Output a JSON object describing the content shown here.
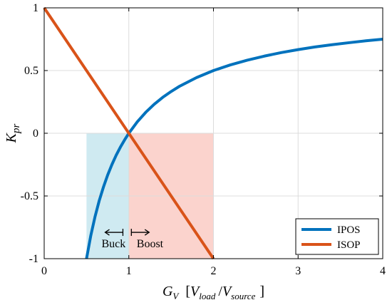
{
  "chart_data": {
    "type": "line",
    "xlim": [
      0,
      4
    ],
    "ylim": [
      -1,
      1
    ],
    "xticks": [
      0,
      1,
      2,
      3,
      4
    ],
    "xtick_labels": [
      "0",
      "1",
      "2",
      "3",
      "4"
    ],
    "yticks": [
      -1,
      -0.5,
      0,
      0.5,
      1
    ],
    "ytick_labels": [
      "-1",
      "-0.5",
      "0",
      "0.5",
      "1"
    ],
    "xlabel": {
      "var": "G",
      "var_sub": "V",
      "open_bracket": "[",
      "num": "V",
      "num_sub": "load",
      "slash": "/",
      "den": "V",
      "den_sub": "source",
      "close_bracket": "]"
    },
    "ylabel": {
      "var": "K",
      "var_sub": "pr"
    },
    "grid": true,
    "series": [
      {
        "name": "IPOS",
        "color": "#0072BD",
        "x": [
          0.5,
          0.55,
          0.6,
          0.65,
          0.7,
          0.75,
          0.8,
          0.85,
          0.9,
          0.95,
          1.0,
          1.1,
          1.2,
          1.3,
          1.4,
          1.5,
          1.6,
          1.8,
          2.0,
          2.2,
          2.4,
          2.6,
          2.8,
          3.0,
          3.2,
          3.4,
          3.6,
          3.8,
          4.0
        ],
        "y": [
          -1.0,
          -0.818,
          -0.667,
          -0.538,
          -0.429,
          -0.333,
          -0.25,
          -0.176,
          -0.111,
          -0.053,
          0.0,
          0.091,
          0.167,
          0.231,
          0.286,
          0.333,
          0.375,
          0.444,
          0.5,
          0.545,
          0.583,
          0.615,
          0.643,
          0.667,
          0.688,
          0.706,
          0.722,
          0.737,
          0.75
        ]
      },
      {
        "name": "ISOP",
        "color": "#D95319",
        "x": [
          0,
          2
        ],
        "y": [
          1,
          -1
        ]
      }
    ],
    "regions": [
      {
        "name": "buck-region",
        "x0": 0.5,
        "x1": 1.0,
        "y0": -1,
        "y1": 0,
        "color": "#cfeaf1"
      },
      {
        "name": "boost-region",
        "x0": 1.0,
        "x1": 2.0,
        "y0": -1,
        "y1": 0,
        "color": "#fbd3cd"
      }
    ],
    "annotations": [
      {
        "text": "Buck",
        "x": 0.82,
        "y": -0.91,
        "arrow_x0": 0.93,
        "arrow_x1": 0.72,
        "arrow_y": -0.79
      },
      {
        "text": "Boost",
        "x": 1.25,
        "y": -0.91,
        "arrow_x0": 1.03,
        "arrow_x1": 1.24,
        "arrow_y": -0.79
      }
    ],
    "legend": {
      "position": "bottom-right"
    }
  }
}
